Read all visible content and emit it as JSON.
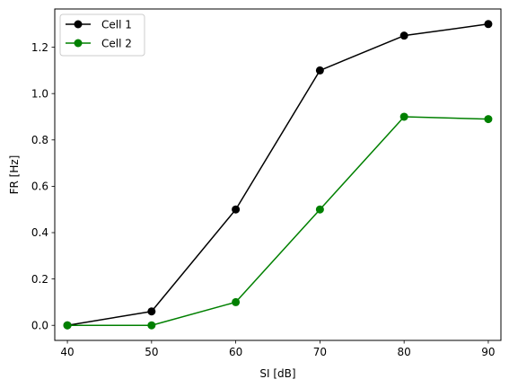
{
  "chart_data": {
    "type": "line",
    "title": "",
    "xlabel": "SI [dB]",
    "ylabel": "FR [Hz]",
    "x": [
      40,
      50,
      60,
      70,
      80,
      90
    ],
    "xticks": [
      "40",
      "50",
      "60",
      "70",
      "80",
      "90"
    ],
    "yticks": [
      "0.0",
      "0.2",
      "0.4",
      "0.6",
      "0.8",
      "1.0",
      "1.2"
    ],
    "xlim": [
      38.5,
      91.5
    ],
    "ylim": [
      -0.065,
      1.365
    ],
    "grid": false,
    "legend_position": "top-left",
    "series": [
      {
        "name": "Cell 1",
        "color": "#000000",
        "marker": "circle",
        "values": [
          0.0,
          0.06,
          0.5,
          1.1,
          1.25,
          1.3
        ]
      },
      {
        "name": "Cell 2",
        "color": "#008000",
        "marker": "circle",
        "values": [
          0.0,
          0.0,
          0.1,
          0.5,
          0.9,
          0.89
        ]
      }
    ]
  }
}
